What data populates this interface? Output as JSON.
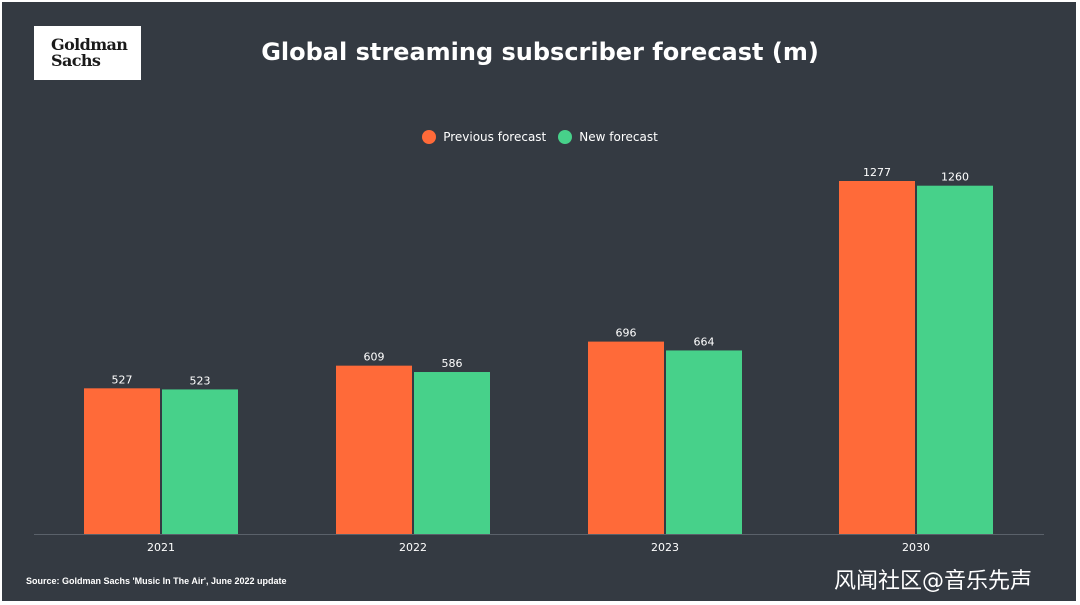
{
  "logo": {
    "line1": "Goldman",
    "line2": "Sachs"
  },
  "legend": {
    "previous_label": "Previous forecast",
    "new_label": "New forecast"
  },
  "source": "Source: Goldman Sachs 'Music In The Air', June 2022 update",
  "watermark": "风闻社区@音乐先声",
  "colors": {
    "background": "#343a42",
    "previous": "#ff6a39",
    "new": "#47d18a",
    "axis": "#5a616a"
  },
  "chart_data": {
    "type": "bar",
    "title": "Global streaming subscriber forecast (m)",
    "xlabel": "",
    "ylabel": "",
    "categories": [
      "2021",
      "2022",
      "2023",
      "2030"
    ],
    "series": [
      {
        "name": "Previous forecast",
        "values": [
          527,
          609,
          696,
          1277
        ]
      },
      {
        "name": "New forecast",
        "values": [
          523,
          586,
          664,
          1260
        ]
      }
    ],
    "ylim": [
      0,
      1277
    ],
    "grid": false,
    "legend_position": "top-center"
  }
}
